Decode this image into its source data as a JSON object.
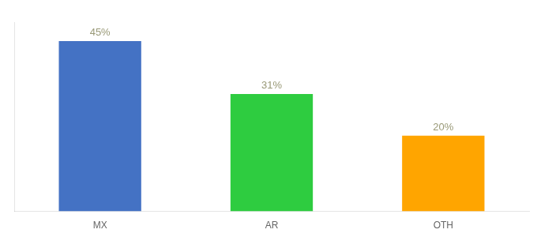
{
  "chart_data": {
    "type": "bar",
    "categories": [
      "MX",
      "AR",
      "OTH"
    ],
    "values": [
      45,
      31,
      20
    ],
    "value_labels": [
      "45%",
      "31%",
      "20%"
    ],
    "colors": [
      "#4472C4",
      "#2ECC40",
      "#FFA500"
    ],
    "ylim": [
      0,
      50
    ],
    "yticks": [],
    "grid": false,
    "data_labels": true,
    "tick_labels": "x"
  }
}
